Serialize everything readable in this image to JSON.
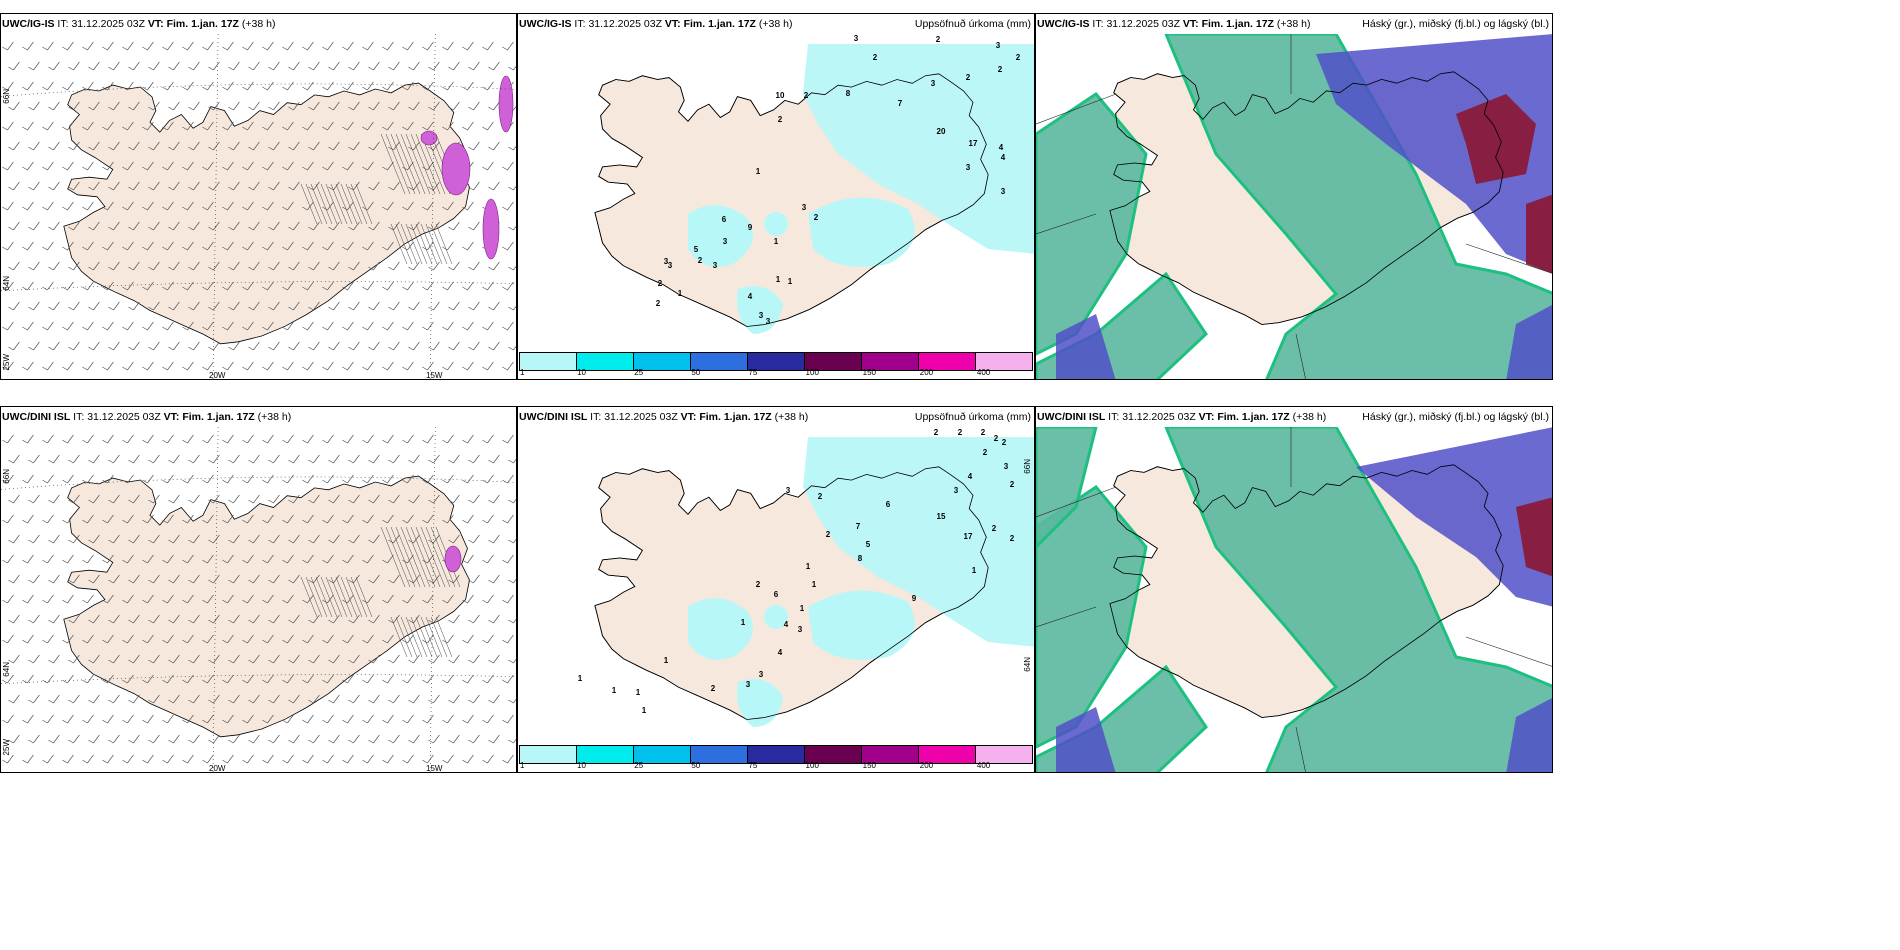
{
  "panels": [
    {
      "model": "UWC/IG-IS",
      "it_label": "IT:",
      "it_value": "31.12.2025 03Z",
      "vt_label": "VT:",
      "vt_value": "Fim. 1.jan. 17Z",
      "lead": "(+38 h)",
      "right_title": ""
    },
    {
      "model": "UWC/IG-IS",
      "it_label": "IT:",
      "it_value": "31.12.2025 03Z",
      "vt_label": "VT:",
      "vt_value": "Fim. 1.jan. 17Z",
      "lead": "(+38 h)",
      "right_title": "Uppsöfnuð úrkoma (mm)"
    },
    {
      "model": "UWC/IG-IS",
      "it_label": "IT:",
      "it_value": "31.12.2025 03Z",
      "vt_label": "VT:",
      "vt_value": "Fim. 1.jan. 17Z",
      "lead": "(+38 h)",
      "right_title": "Háský (gr.), miðský (fj.bl.) og lágský (bl.)"
    },
    {
      "model": "UWC/DINI ISL",
      "it_label": "IT:",
      "it_value": "31.12.2025 03Z",
      "vt_label": "VT:",
      "vt_value": "Fim. 1.jan. 17Z",
      "lead": "(+38 h)",
      "right_title": ""
    },
    {
      "model": "UWC/DINI ISL",
      "it_label": "IT:",
      "it_value": "31.12.2025 03Z",
      "vt_label": "VT:",
      "vt_value": "Fim. 1.jan. 17Z",
      "lead": "(+38 h)",
      "right_title": "Uppsöfnuð úrkoma (mm)"
    },
    {
      "model": "UWC/DINI ISL",
      "it_label": "IT:",
      "it_value": "31.12.2025 03Z",
      "vt_label": "VT:",
      "vt_value": "Fim. 1.jan. 17Z",
      "lead": "(+38 h)",
      "right_title": "Háský (gr.), miðský (fj.bl.) og lágský (bl.)"
    }
  ],
  "coords": {
    "lat66": "66N",
    "lat64": "64N",
    "lon25": "25W",
    "lon20": "20W",
    "lon15": "15W"
  },
  "precip_legend": {
    "labels": [
      "1",
      "10",
      "25",
      "50",
      "75",
      "100",
      "150",
      "200",
      "400"
    ],
    "colors": [
      "#b8f7f7",
      "#00ebeb",
      "#00c0ec",
      "#2e6fe0",
      "#2a2aa0",
      "#6a0050",
      "#a0008a",
      "#ee00aa",
      "#f5b0ee"
    ]
  },
  "precip_totals": {
    "top": [
      "3",
      "2",
      "2",
      "3",
      "2",
      "2",
      "3",
      "2",
      "10",
      "2",
      "8",
      "7",
      "20",
      "17",
      "4",
      "4",
      "3",
      "3",
      "2",
      "1",
      "3",
      "2",
      "1",
      "6",
      "3",
      "9",
      "5",
      "3",
      "2",
      "3",
      "2",
      "1",
      "1",
      "4",
      "3",
      "3",
      "2",
      "1",
      "3",
      "1"
    ],
    "bottom": [
      "2",
      "2",
      "2",
      "2",
      "2",
      "2",
      "3",
      "4",
      "3",
      "2",
      "7",
      "5",
      "8",
      "6",
      "9",
      "15",
      "17",
      "2",
      "2",
      "1",
      "3",
      "2",
      "2",
      "1",
      "6",
      "4",
      "3",
      "2",
      "1",
      "1",
      "1",
      "3",
      "4",
      "3",
      "2",
      "1",
      "1",
      "1",
      "1",
      "1"
    ]
  },
  "colors": {
    "land": "#f6e8dd",
    "coast": "#000000",
    "cloud_high": "#5bb89e",
    "cloud_mid": "#5050c8",
    "cloud_low": "#8a1a3a",
    "wind_barb": "#555555"
  }
}
